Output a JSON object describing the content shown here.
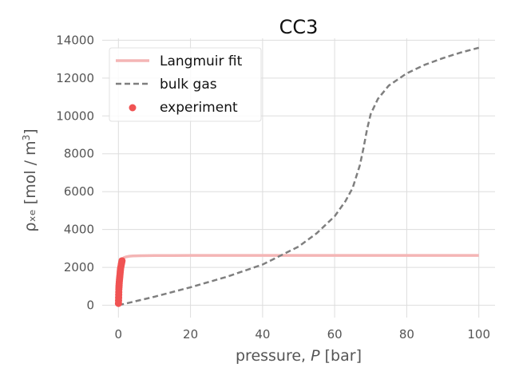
{
  "chart_data": {
    "type": "line",
    "title": "CC3",
    "xlabel": "pressure, P [bar]",
    "xlabel_prefix": "pressure, ",
    "xlabel_var": "P",
    "xlabel_suffix": " [bar]",
    "ylabel": "ρₓₑ [mol / m³]",
    "ylabel_main": "ρₓₑ [mol / m",
    "ylabel_sup": "3",
    "ylabel_end": "]",
    "xlim": [
      -4.5,
      104.5
    ],
    "ylim": [
      -650,
      14100
    ],
    "xticks": [
      0,
      20,
      40,
      60,
      80,
      100
    ],
    "yticks": [
      0,
      2000,
      4000,
      6000,
      8000,
      10000,
      12000,
      14000
    ],
    "grid": true,
    "legend_position": "top-left",
    "series": [
      {
        "name": "Langmuir fit",
        "style": "solid",
        "color": "#f4b5b5",
        "x": [
          0,
          0.1,
          0.2,
          0.3,
          0.5,
          0.75,
          1,
          1.5,
          2,
          3,
          4,
          6,
          8,
          10,
          15,
          20,
          40,
          60,
          80,
          100
        ],
        "y": [
          0,
          1000,
          1550,
          1850,
          2150,
          2330,
          2420,
          2510,
          2550,
          2590,
          2605,
          2618,
          2622,
          2625,
          2628,
          2630,
          2632,
          2633,
          2633,
          2633
        ]
      },
      {
        "name": "bulk gas",
        "style": "dashed",
        "color": "#7f7f7f",
        "x": [
          0,
          10,
          20,
          30,
          40,
          50,
          55,
          60,
          63,
          65,
          67,
          68,
          69,
          70,
          72,
          75,
          80,
          85,
          90,
          95,
          100
        ],
        "y": [
          0,
          450,
          950,
          1500,
          2150,
          3100,
          3800,
          4700,
          5500,
          6200,
          7400,
          8300,
          9300,
          10100,
          10900,
          11600,
          12250,
          12700,
          13050,
          13350,
          13600
        ]
      },
      {
        "name": "experiment",
        "style": "scatter",
        "color": "#f05353",
        "x": [
          0.02,
          0.04,
          0.06,
          0.08,
          0.1,
          0.12,
          0.15,
          0.18,
          0.21,
          0.25,
          0.3,
          0.35,
          0.4,
          0.45,
          0.5,
          0.55,
          0.6,
          0.7,
          0.8,
          0.9,
          1.0
        ],
        "y": [
          100,
          250,
          400,
          550,
          700,
          850,
          950,
          1050,
          1150,
          1250,
          1350,
          1450,
          1550,
          1650,
          1750,
          1850,
          1950,
          2050,
          2150,
          2250,
          2350
        ]
      }
    ]
  }
}
